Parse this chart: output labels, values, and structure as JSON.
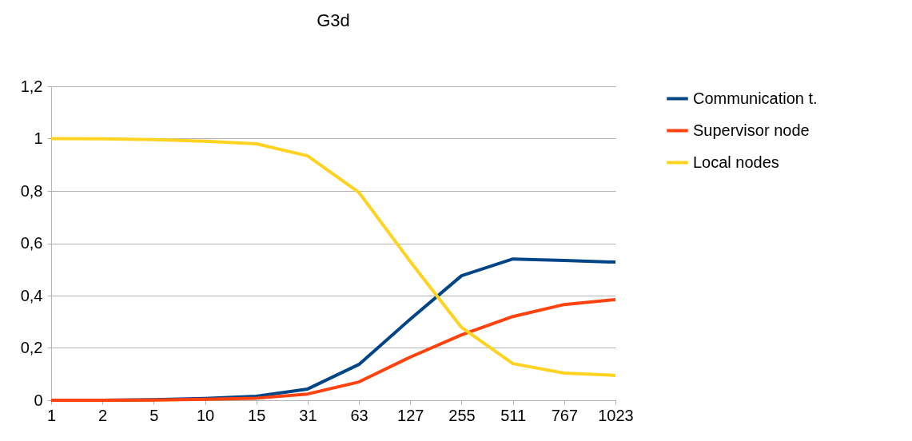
{
  "chart_data": {
    "type": "line",
    "title": "G3d",
    "categories": [
      "1",
      "2",
      "5",
      "10",
      "15",
      "31",
      "63",
      "127",
      "255",
      "511",
      "767",
      "1023"
    ],
    "series": [
      {
        "name": "Communication t.",
        "color": "#004586",
        "values": [
          0,
          0,
          0.002,
          0.007,
          0.015,
          0.043,
          0.137,
          0.31,
          0.476,
          0.54,
          0.534,
          0.528
        ]
      },
      {
        "name": "Supervisor node",
        "color": "#ff420e",
        "values": [
          0,
          0,
          0.001,
          0.004,
          0.008,
          0.024,
          0.07,
          0.165,
          0.25,
          0.32,
          0.366,
          0.385
        ]
      },
      {
        "name": "Local nodes",
        "color": "#ffd320",
        "values": [
          1,
          0.999,
          0.996,
          0.99,
          0.98,
          0.934,
          0.794,
          0.53,
          0.278,
          0.14,
          0.104,
          0.095
        ]
      }
    ],
    "ylim": [
      0,
      1.2
    ],
    "yticks": [
      0,
      {
        "value": 0.2,
        "label": "0,2"
      },
      {
        "value": 0.4,
        "label": "0,4"
      },
      {
        "value": 0.6,
        "label": "0,6"
      },
      {
        "value": 0.8,
        "label": "0,8"
      },
      1,
      {
        "value": 1.2,
        "label": "1,2"
      }
    ],
    "grid": "y",
    "legend": "right",
    "marker": "none",
    "line_style": "solid"
  }
}
